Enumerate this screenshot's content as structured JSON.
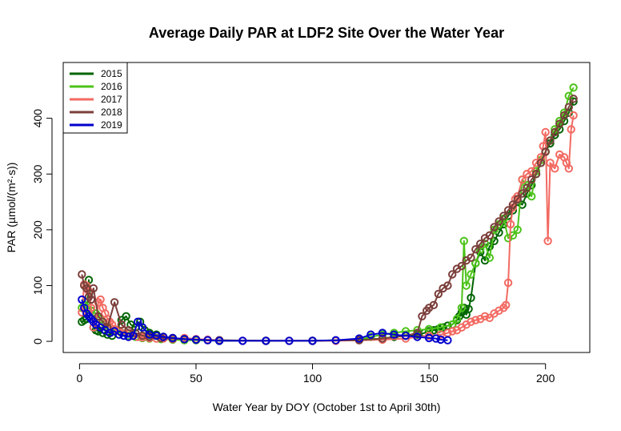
{
  "chart_data": {
    "type": "scatter",
    "title": "Average Daily PAR at LDF2 Site Over the Water Year",
    "xlabel": "Water Year by DOY (October 1st to April 30th)",
    "ylabel": "PAR (µmol/(m²·s))",
    "xlim": [
      -7,
      219
    ],
    "ylim": [
      -20,
      500
    ],
    "xticks": [
      0,
      50,
      100,
      150,
      200
    ],
    "yticks": [
      0,
      100,
      200,
      300,
      400
    ],
    "grid": false,
    "legend_position": "top-left",
    "markers": "open-circle-with-lines",
    "series": [
      {
        "name": "2015",
        "color": "#006400",
        "x": [
          1,
          2,
          3,
          4,
          5,
          6,
          7,
          8,
          10,
          12,
          14,
          16,
          18,
          20,
          22,
          24,
          26,
          28,
          30,
          33,
          36,
          40,
          45,
          50,
          60,
          80,
          100,
          120,
          130,
          135,
          140,
          145,
          148,
          150,
          152,
          154,
          156,
          158,
          160,
          162,
          163,
          164,
          165,
          166,
          167,
          168,
          170,
          172,
          174,
          176,
          178,
          180,
          182,
          184,
          186,
          188,
          190,
          192,
          194,
          196,
          198,
          200,
          202,
          204,
          206,
          208,
          210,
          212
        ],
        "y": [
          35,
          38,
          40,
          110,
          55,
          25,
          20,
          18,
          15,
          12,
          10,
          20,
          38,
          45,
          30,
          25,
          35,
          20,
          15,
          12,
          8,
          6,
          4,
          3,
          2,
          1,
          1,
          3,
          5,
          8,
          10,
          12,
          15,
          18,
          20,
          22,
          25,
          28,
          30,
          38,
          45,
          52,
          60,
          48,
          58,
          78,
          140,
          160,
          145,
          170,
          180,
          195,
          210,
          225,
          235,
          250,
          245,
          265,
          280,
          300,
          320,
          340,
          355,
          370,
          380,
          395,
          410,
          430
        ]
      },
      {
        "name": "2016",
        "color": "#4CC319",
        "x": [
          1,
          2,
          3,
          5,
          7,
          9,
          11,
          13,
          15,
          18,
          21,
          24,
          27,
          30,
          35,
          40,
          45,
          50,
          60,
          80,
          100,
          120,
          125,
          130,
          135,
          140,
          145,
          150,
          155,
          160,
          162,
          164,
          165,
          166,
          168,
          170,
          172,
          174,
          176,
          178,
          180,
          182,
          184,
          186,
          188,
          190,
          192,
          194,
          196,
          198,
          200,
          202,
          204,
          206,
          208,
          210,
          212
        ],
        "y": [
          60,
          65,
          70,
          55,
          50,
          40,
          30,
          25,
          20,
          15,
          10,
          8,
          6,
          5,
          4,
          3,
          2,
          2,
          1,
          1,
          1,
          3,
          8,
          12,
          15,
          18,
          20,
          22,
          25,
          30,
          40,
          60,
          180,
          100,
          120,
          140,
          165,
          175,
          150,
          200,
          210,
          220,
          185,
          190,
          200,
          290,
          280,
          260,
          305,
          325,
          340,
          360,
          380,
          395,
          410,
          440,
          455
        ]
      },
      {
        "name": "2017",
        "color": "#F26A62",
        "x": [
          1,
          2,
          3,
          4,
          5,
          6,
          7,
          8,
          9,
          10,
          11,
          12,
          13,
          14,
          15,
          17,
          19,
          21,
          23,
          25,
          27,
          30,
          33,
          36,
          40,
          45,
          50,
          55,
          60,
          70,
          80,
          90,
          100,
          110,
          120,
          130,
          140,
          145,
          150,
          155,
          158,
          160,
          162,
          164,
          166,
          168,
          170,
          172,
          174,
          176,
          178,
          180,
          182,
          183,
          184,
          185,
          186,
          187,
          188,
          190,
          192,
          194,
          196,
          198,
          199,
          200,
          201,
          202,
          204,
          206,
          208,
          209,
          210,
          211,
          212
        ],
        "y": [
          52,
          102,
          100,
          90,
          60,
          25,
          30,
          70,
          75,
          60,
          50,
          40,
          35,
          30,
          22,
          18,
          20,
          15,
          10,
          8,
          7,
          6,
          5,
          5,
          4,
          6,
          4,
          3,
          2,
          1,
          1,
          1,
          1,
          1,
          2,
          3,
          5,
          8,
          10,
          12,
          15,
          18,
          20,
          25,
          30,
          35,
          38,
          40,
          45,
          42,
          50,
          55,
          60,
          65,
          105,
          210,
          240,
          255,
          260,
          290,
          300,
          305,
          320,
          330,
          350,
          375,
          180,
          320,
          310,
          335,
          330,
          320,
          310,
          380,
          405
        ]
      },
      {
        "name": "2018",
        "color": "#7B3F3B",
        "x": [
          1,
          2,
          3,
          4,
          5,
          6,
          8,
          10,
          12,
          15,
          18,
          21,
          24,
          27,
          30,
          35,
          40,
          45,
          50,
          60,
          80,
          100,
          120,
          130,
          140,
          145,
          147,
          149,
          150,
          152,
          154,
          156,
          158,
          160,
          162,
          164,
          166,
          168,
          170,
          172,
          174,
          176,
          178,
          180,
          182,
          184,
          186,
          188,
          190,
          192,
          194,
          196,
          198,
          200,
          202,
          204,
          206,
          208,
          210,
          212
        ],
        "y": [
          120,
          100,
          95,
          80,
          75,
          95,
          45,
          35,
          25,
          70,
          30,
          20,
          15,
          10,
          8,
          6,
          5,
          4,
          3,
          2,
          1,
          1,
          2,
          5,
          10,
          15,
          45,
          55,
          60,
          65,
          85,
          95,
          100,
          120,
          130,
          135,
          145,
          150,
          165,
          175,
          185,
          190,
          205,
          215,
          225,
          235,
          245,
          255,
          265,
          275,
          290,
          300,
          320,
          340,
          360,
          375,
          390,
          405,
          420,
          435
        ]
      },
      {
        "name": "2019",
        "color": "#0000CD",
        "x": [
          1,
          2,
          3,
          4,
          5,
          6,
          7,
          9,
          11,
          13,
          15,
          17,
          19,
          21,
          23,
          25,
          27,
          30,
          33,
          36,
          40,
          45,
          50,
          55,
          60,
          70,
          80,
          90,
          100,
          110,
          120,
          125,
          130,
          135,
          140,
          145,
          150,
          153,
          155,
          158
        ],
        "y": [
          75,
          60,
          50,
          45,
          40,
          35,
          30,
          25,
          20,
          15,
          18,
          12,
          10,
          8,
          10,
          35,
          25,
          12,
          10,
          8,
          6,
          4,
          3,
          2,
          1,
          1,
          1,
          1,
          1,
          2,
          5,
          12,
          15,
          12,
          10,
          8,
          6,
          5,
          3,
          2
        ]
      }
    ]
  }
}
